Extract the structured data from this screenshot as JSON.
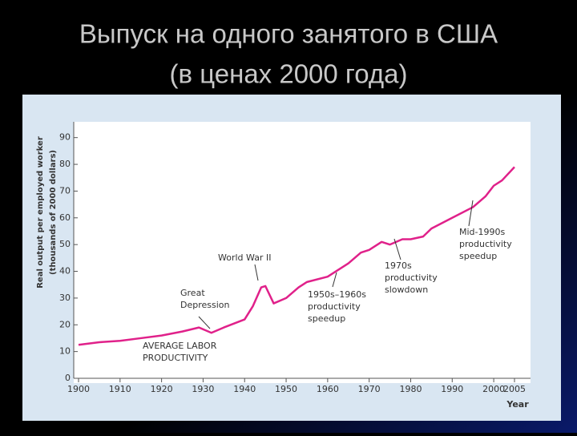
{
  "chart_data": {
    "type": "line",
    "title": [
      "Выпуск на одного занятого в США",
      "(в ценах 2000 года)"
    ],
    "ylabel": [
      "Real output per employed worker",
      "(thousands of 2000 dollars)"
    ],
    "xlabel": "Year",
    "x": [
      1900,
      1905,
      1910,
      1915,
      1920,
      1925,
      1929,
      1932,
      1935,
      1940,
      1942,
      1944,
      1945,
      1947,
      1950,
      1953,
      1955,
      1960,
      1965,
      1968,
      1970,
      1973,
      1975,
      1978,
      1980,
      1983,
      1985,
      1990,
      1995,
      1998,
      2000,
      2002,
      2005
    ],
    "series": [
      {
        "name": "Average labor productivity",
        "color": "#e0218a",
        "values": [
          12.5,
          13.5,
          14,
          15,
          16,
          17.5,
          19,
          17,
          19,
          22,
          27,
          34,
          34.5,
          28,
          30,
          34,
          36,
          38,
          43,
          47,
          48,
          51,
          50,
          52,
          52,
          53,
          56,
          60,
          64,
          68,
          72,
          74,
          79
        ]
      }
    ],
    "xlim": [
      1900,
      2005
    ],
    "ylim": [
      0,
      95
    ],
    "xticks": [
      1900,
      1910,
      1920,
      1930,
      1940,
      1950,
      1960,
      1970,
      1980,
      1990,
      2000,
      2005
    ],
    "yticks": [
      0,
      10,
      20,
      30,
      40,
      50,
      60,
      70,
      80,
      90
    ],
    "annotations": [
      {
        "text": [
          "Great",
          "Depression"
        ]
      },
      {
        "text": [
          "World War II"
        ]
      },
      {
        "text": [
          "AVERAGE LABOR",
          "PRODUCTIVITY"
        ]
      },
      {
        "text": [
          "1950s–1960s",
          "productivity",
          "speedup"
        ]
      },
      {
        "text": [
          "1970s",
          "productivity",
          "slowdown"
        ]
      },
      {
        "text": [
          "Mid-1990s",
          "productivity",
          "speedup"
        ]
      }
    ]
  }
}
